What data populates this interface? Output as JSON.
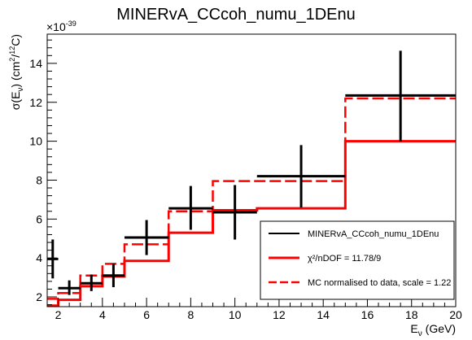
{
  "chart_data": {
    "type": "line",
    "title": "MINERvA_CCcoh_numu_1DEnu",
    "xlabel": "E_ν (GeV)",
    "ylabel": "σ(E_ν) (cm²/¹²C)",
    "y_multiplier": "×10^-39",
    "xlim": [
      1.5,
      20
    ],
    "ylim": [
      1.5,
      15.5
    ],
    "x_ticks": [
      2,
      4,
      6,
      8,
      10,
      12,
      14,
      16,
      18,
      20
    ],
    "y_ticks": [
      2,
      4,
      6,
      8,
      10,
      12,
      14
    ],
    "grid": false,
    "legend_position": "bottom-right",
    "bin_edges": [
      1.5,
      2.0,
      3.0,
      4.0,
      5.0,
      7.0,
      9.0,
      11.0,
      15.0,
      20.0
    ],
    "series": [
      {
        "name": "MINERvA_CCcoh_numu_1DEnu",
        "style": "points-with-errors",
        "color": "#000000",
        "points": [
          {
            "x": 1.75,
            "y": 3.95,
            "ylo": 2.95,
            "yhi": 4.95
          },
          {
            "x": 2.5,
            "y": 2.45,
            "ylo": 2.1,
            "yhi": 2.85
          },
          {
            "x": 3.5,
            "y": 2.7,
            "ylo": 2.3,
            "yhi": 3.15
          },
          {
            "x": 4.5,
            "y": 3.1,
            "ylo": 2.5,
            "yhi": 3.7
          },
          {
            "x": 6.0,
            "y": 5.05,
            "ylo": 4.15,
            "yhi": 5.95
          },
          {
            "x": 8.0,
            "y": 6.55,
            "ylo": 5.45,
            "yhi": 7.7
          },
          {
            "x": 10.0,
            "y": 6.35,
            "ylo": 4.95,
            "yhi": 7.75
          },
          {
            "x": 13.0,
            "y": 8.2,
            "ylo": 6.6,
            "yhi": 9.8
          },
          {
            "x": 17.5,
            "y": 12.35,
            "ylo": 10.0,
            "yhi": 14.65
          }
        ]
      },
      {
        "name": "χ²/nDOF = 11.78/9",
        "style": "histogram-solid",
        "color": "#ff0000",
        "values": [
          1.55,
          1.85,
          2.55,
          3.05,
          3.85,
          5.3,
          6.45,
          6.55,
          10.0
        ]
      },
      {
        "name": "MC normalised to data, scale = 1.22",
        "style": "histogram-dashed",
        "color": "#ff0000",
        "values": [
          1.9,
          2.2,
          3.1,
          3.7,
          4.7,
          6.4,
          7.95,
          7.95,
          12.2
        ]
      }
    ]
  },
  "legend": {
    "entries": [
      "MINERvA_CCcoh_numu_1DEnu",
      "χ²/nDOF = 11.78/9",
      "MC normalised to data, scale = 1.22"
    ]
  }
}
